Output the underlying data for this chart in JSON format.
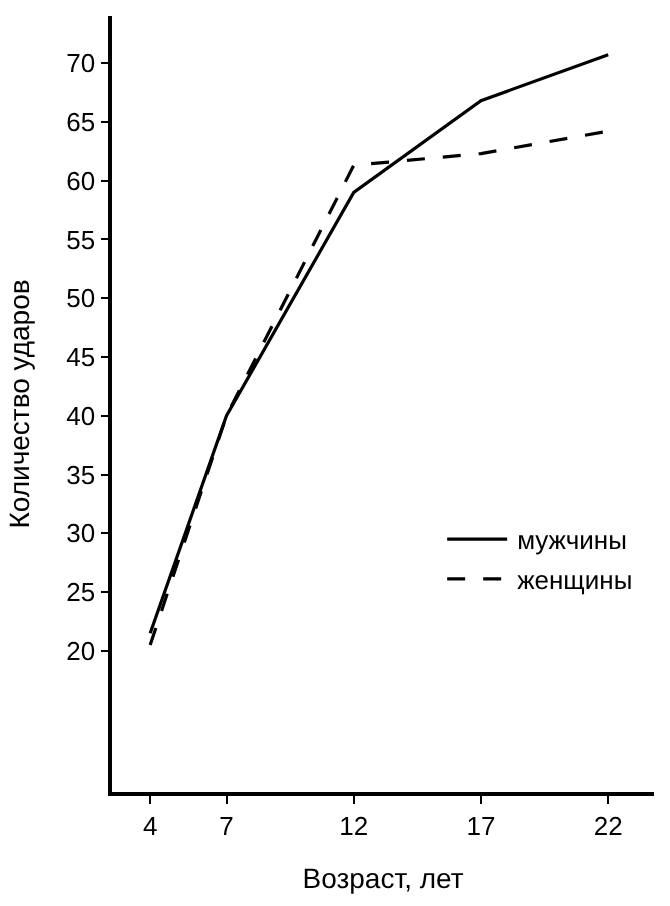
{
  "chart_data": {
    "type": "line",
    "xlabel": "Возраст, лет",
    "ylabel": "Количество ударов",
    "x": [
      4,
      7,
      12,
      17,
      22
    ],
    "series": [
      {
        "name": "мужчины",
        "color": "#000000",
        "line_style": "solid",
        "values": [
          21.5,
          40,
          59,
          66.8,
          70.7
        ]
      },
      {
        "name": "женщины",
        "color": "#000000",
        "line_style": "dashed",
        "values": [
          20.5,
          40,
          61.3,
          62.3,
          64.2
        ]
      }
    ],
    "xlim": [
      2.5,
      23.8
    ],
    "xticks": [
      4,
      7,
      12,
      17,
      22
    ],
    "ylim": [
      8,
      74
    ],
    "yticks": [
      20,
      25,
      30,
      35,
      40,
      45,
      50,
      55,
      60,
      65,
      70
    ],
    "legend": "right",
    "marker": "none"
  }
}
